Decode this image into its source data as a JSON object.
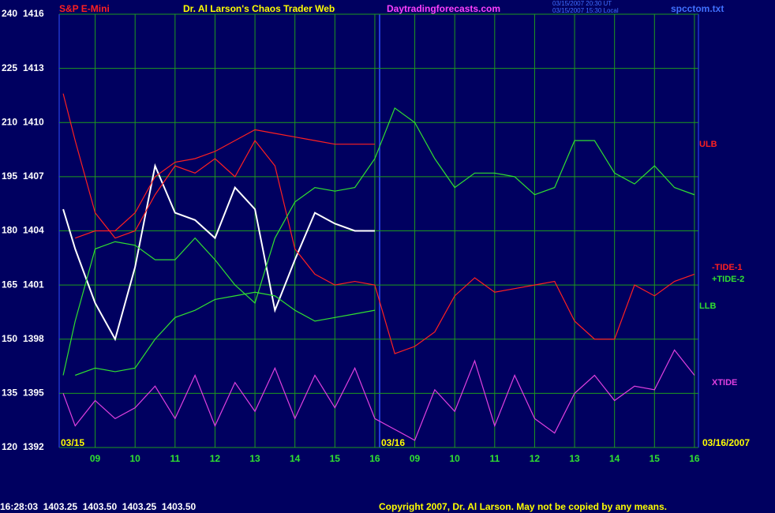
{
  "chart_data": {
    "type": "line",
    "title": "S&P E-Mini",
    "subtitle": "Dr. Al Larson's Chaos Trader Web",
    "website": "Daytradingforecasts.com",
    "timestamps": [
      "03/15/2007 20:30 UT",
      "03/15/2007 15:30 Local"
    ],
    "file": "spcctom.txt",
    "date_labels": [
      "03/15",
      "03/16",
      "03/16/2007"
    ],
    "quote_line": "16:28:03  1403.25  1403.50  1403.25  1403.50",
    "copyright": "Copyright 2007, Dr. Al Larson. May not be copied by any means.",
    "grid": true,
    "xlim": [
      8.1,
      24.1
    ],
    "xticks": [
      {
        "value": 9,
        "label": "09"
      },
      10,
      11,
      12,
      13,
      14,
      15,
      16,
      {
        "value": 17,
        "label": "09"
      },
      {
        "value": 18,
        "label": "10"
      },
      {
        "value": 19,
        "label": "11"
      },
      {
        "value": 20,
        "label": "12"
      },
      {
        "value": 21,
        "label": "13"
      },
      {
        "value": 22,
        "label": "14"
      },
      {
        "value": 23,
        "label": "15"
      },
      {
        "value": 24,
        "label": "16"
      }
    ],
    "ylim": [
      120,
      240
    ],
    "yticks": [
      120,
      135,
      150,
      165,
      180,
      195,
      210,
      225,
      240
    ],
    "y2lim": [
      1392,
      1416
    ],
    "y2ticks": [
      1392,
      1395,
      1398,
      1401,
      1404,
      1407,
      1410,
      1413,
      1416
    ],
    "x": [
      8.2,
      8.5,
      9,
      9.5,
      10,
      10.5,
      11,
      11.5,
      12,
      12.5,
      13,
      13.5,
      14,
      14.5,
      15,
      15.5,
      16,
      16.5,
      17,
      17.5,
      18,
      18.5,
      19,
      19.5,
      20,
      20.5,
      21,
      21.5,
      22,
      22.5,
      23,
      23.5,
      24
    ],
    "series": [
      {
        "color": "#ffffff",
        "values": [
          186,
          175,
          160,
          150,
          170,
          198,
          185,
          183,
          178,
          192,
          186,
          158,
          172,
          185,
          182,
          180,
          180,
          null,
          null,
          null,
          null,
          null,
          null,
          null,
          null,
          null,
          null,
          null,
          null,
          null,
          null,
          null,
          null
        ]
      },
      {
        "name": "ULB",
        "color": "#ff2020",
        "values": [
          null,
          178,
          180,
          180,
          185,
          195,
          199,
          200,
          202,
          205,
          208,
          207,
          206,
          205,
          204,
          204,
          204,
          null,
          null,
          null,
          null,
          null,
          null,
          null,
          null,
          null,
          null,
          null,
          null,
          null,
          null,
          null,
          null
        ]
      },
      {
        "name": "-TIDE-1",
        "color": "#ff2020",
        "values": [
          218,
          205,
          185,
          178,
          180,
          190,
          198,
          196,
          200,
          195,
          205,
          198,
          175,
          168,
          165,
          166,
          165,
          146,
          148,
          152,
          162,
          167,
          163,
          164,
          165,
          166,
          155,
          150,
          150,
          165,
          162,
          166,
          168
        ]
      },
      {
        "name": "+TIDE-2",
        "color": "#30e030",
        "values": [
          140,
          155,
          175,
          177,
          176,
          172,
          172,
          178,
          172,
          165,
          160,
          178,
          188,
          192,
          191,
          192,
          200,
          214,
          210,
          200,
          192,
          196,
          196,
          195,
          190,
          192,
          205,
          205,
          196,
          193,
          198,
          192,
          190
        ]
      },
      {
        "name": "LLB",
        "color": "#30e030",
        "values": [
          null,
          140,
          142,
          141,
          142,
          150,
          156,
          158,
          161,
          162,
          163,
          162,
          158,
          155,
          156,
          157,
          158,
          null,
          null,
          null,
          null,
          null,
          null,
          null,
          null,
          null,
          null,
          null,
          null,
          null,
          null,
          null,
          null
        ]
      },
      {
        "name": "XTIDE",
        "color": "#e040e0",
        "values": [
          135,
          126,
          133,
          128,
          131,
          137,
          128,
          140,
          126,
          138,
          130,
          142,
          128,
          140,
          131,
          142,
          128,
          125,
          122,
          136,
          130,
          144,
          126,
          140,
          128,
          124,
          135,
          140,
          133,
          137,
          136,
          147,
          140
        ]
      }
    ]
  }
}
